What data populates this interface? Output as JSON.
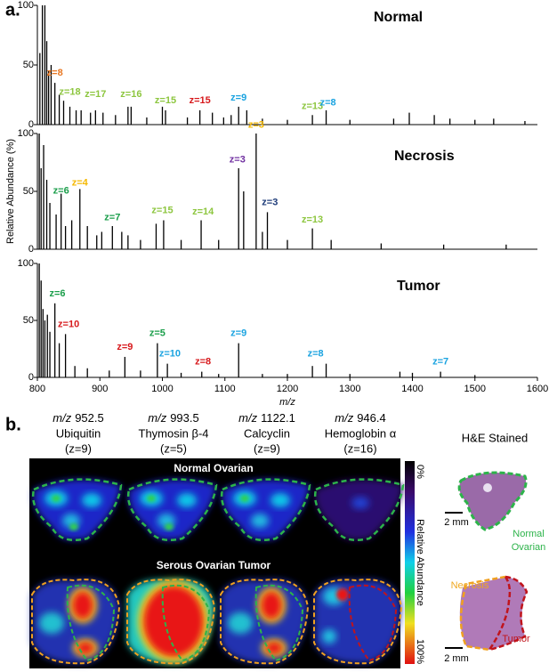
{
  "panel_labels": {
    "a": "a.",
    "b": "b."
  },
  "chart_data": [
    {
      "type": "stem",
      "title": "Normal",
      "color": "#000000",
      "x": [
        804,
        808,
        812,
        815,
        818,
        822,
        828,
        835,
        842,
        852,
        862,
        870,
        885,
        893,
        905,
        925,
        945,
        950,
        975,
        1000,
        1005,
        1040,
        1060,
        1080,
        1098,
        1110,
        1122,
        1135,
        1160,
        1200,
        1240,
        1262,
        1300,
        1370,
        1395,
        1435,
        1460,
        1500,
        1530,
        1580
      ],
      "values": [
        60,
        100,
        100,
        70,
        45,
        50,
        35,
        25,
        20,
        15,
        12,
        12,
        10,
        12,
        10,
        8,
        15,
        15,
        6,
        15,
        12,
        6,
        12,
        10,
        6,
        8,
        15,
        12,
        5,
        4,
        8,
        12,
        4,
        5,
        10,
        8,
        5,
        4,
        5,
        3
      ],
      "xlim": [
        800,
        1600
      ],
      "ylim": [
        0,
        100
      ],
      "yticks": [
        0,
        50,
        100
      ],
      "annotations": [
        {
          "text": "z=8",
          "x": 828,
          "y": 38,
          "color": "#e87722"
        },
        {
          "text": "z=18",
          "x": 852,
          "y": 22,
          "color": "#8dc63f"
        },
        {
          "text": "z=17",
          "x": 893,
          "y": 20,
          "color": "#8dc63f"
        },
        {
          "text": "z=16",
          "x": 950,
          "y": 20,
          "color": "#8dc63f"
        },
        {
          "text": "z=15",
          "x": 1005,
          "y": 15,
          "color": "#8dc63f"
        },
        {
          "text": "z=15",
          "x": 1060,
          "y": 15,
          "color": "#d7191c"
        },
        {
          "text": "z=9",
          "x": 1122,
          "y": 17,
          "color": "#1aa3e0"
        },
        {
          "text": "z=13",
          "x": 1240,
          "y": 10,
          "color": "#8dc63f"
        },
        {
          "text": "z=8",
          "x": 1265,
          "y": 13,
          "color": "#1aa3e0"
        }
      ]
    },
    {
      "type": "stem",
      "title": "Necrosis",
      "color": "#000000",
      "ylabel": "Relative Abundance (%)",
      "x": [
        803,
        806,
        810,
        815,
        820,
        830,
        838,
        845,
        855,
        868,
        880,
        895,
        903,
        920,
        935,
        945,
        965,
        990,
        1002,
        1030,
        1062,
        1090,
        1122,
        1130,
        1150,
        1160,
        1168,
        1200,
        1240,
        1270,
        1350,
        1450,
        1550
      ],
      "values": [
        100,
        70,
        90,
        60,
        40,
        30,
        48,
        20,
        25,
        52,
        20,
        12,
        15,
        20,
        15,
        12,
        8,
        22,
        25,
        8,
        25,
        8,
        70,
        50,
        100,
        15,
        32,
        8,
        18,
        8,
        5,
        4,
        4
      ],
      "xlim": [
        800,
        1600
      ],
      "ylim": [
        0,
        100
      ],
      "yticks": [
        0,
        50,
        100
      ],
      "annotations": [
        {
          "text": "z=6",
          "x": 838,
          "y": 45,
          "color": "#1a9e4a"
        },
        {
          "text": "z=4",
          "x": 868,
          "y": 52,
          "color": "#f5b800"
        },
        {
          "text": "z=7",
          "x": 920,
          "y": 22,
          "color": "#1a9e4a"
        },
        {
          "text": "z=15",
          "x": 1000,
          "y": 28,
          "color": "#8dc63f"
        },
        {
          "text": "z=14",
          "x": 1065,
          "y": 27,
          "color": "#8dc63f"
        },
        {
          "text": "z=3",
          "x": 1120,
          "y": 72,
          "color": "#7030a0"
        },
        {
          "text": "z=3",
          "x": 1150,
          "y": 102,
          "color": "#f5b800"
        },
        {
          "text": "z=3",
          "x": 1172,
          "y": 35,
          "color": "#1f3d7a"
        },
        {
          "text": "z=13",
          "x": 1240,
          "y": 20,
          "color": "#8dc63f"
        }
      ]
    },
    {
      "type": "stem",
      "title": "Tumor",
      "color": "#000000",
      "xlabel": "m/z",
      "x": [
        803,
        806,
        809,
        812,
        816,
        820,
        828,
        835,
        845,
        860,
        880,
        915,
        940,
        965,
        992,
        1008,
        1030,
        1063,
        1090,
        1122,
        1160,
        1200,
        1240,
        1262,
        1300,
        1380,
        1400,
        1445,
        1500
      ],
      "values": [
        100,
        85,
        60,
        50,
        55,
        40,
        65,
        30,
        38,
        10,
        8,
        6,
        18,
        6,
        30,
        12,
        4,
        5,
        3,
        30,
        3,
        3,
        10,
        12,
        3,
        5,
        4,
        5,
        2
      ],
      "xlim": [
        800,
        1600
      ],
      "ylim": [
        0,
        100
      ],
      "yticks": [
        0,
        50,
        100
      ],
      "xticks": [
        800,
        900,
        1000,
        1100,
        1200,
        1300,
        1400,
        1500,
        1600
      ],
      "annotations": [
        {
          "text": "z=6",
          "x": 832,
          "y": 68,
          "color": "#1a9e4a"
        },
        {
          "text": "z=10",
          "x": 850,
          "y": 41,
          "color": "#d7191c"
        },
        {
          "text": "z=9",
          "x": 940,
          "y": 21,
          "color": "#d7191c"
        },
        {
          "text": "z=5",
          "x": 992,
          "y": 33,
          "color": "#1a9e4a"
        },
        {
          "text": "z=10",
          "x": 1012,
          "y": 15,
          "color": "#1aa3e0"
        },
        {
          "text": "z=8",
          "x": 1065,
          "y": 8,
          "color": "#d7191c"
        },
        {
          "text": "z=9",
          "x": 1122,
          "y": 33,
          "color": "#1aa3e0"
        },
        {
          "text": "z=8",
          "x": 1245,
          "y": 15,
          "color": "#1aa3e0"
        },
        {
          "text": "z=7",
          "x": 1445,
          "y": 8,
          "color": "#1aa3e0"
        }
      ]
    }
  ],
  "panel_b": {
    "columns": [
      {
        "mz_label": "m/z",
        "mz": "952.5",
        "name": "Ubiquitin",
        "charge": "(z=9)"
      },
      {
        "mz_label": "m/z",
        "mz": "993.5",
        "name": "Thymosin β-4",
        "charge": "(z=5)"
      },
      {
        "mz_label": "m/z",
        "mz": "1122.1",
        "name": "Calcyclin",
        "charge": "(z=9)"
      },
      {
        "mz_label": "m/z",
        "mz": "946.4",
        "name": "Hemoglobin α",
        "charge": "(z=16)"
      }
    ],
    "rows": [
      "Normal Ovarian",
      "Serous Ovarian Tumor"
    ],
    "colorbar": {
      "top": "0%",
      "title": "Relative Abundance",
      "bottom": "100%"
    },
    "he": {
      "title": "H&E Stained",
      "scale_top": "2 mm",
      "normal_label": [
        "Normal",
        "Ovarian"
      ],
      "necrosis_label": "Necrosis",
      "tumor_label": "Tumor",
      "scale_bottom": "2 mm"
    }
  }
}
